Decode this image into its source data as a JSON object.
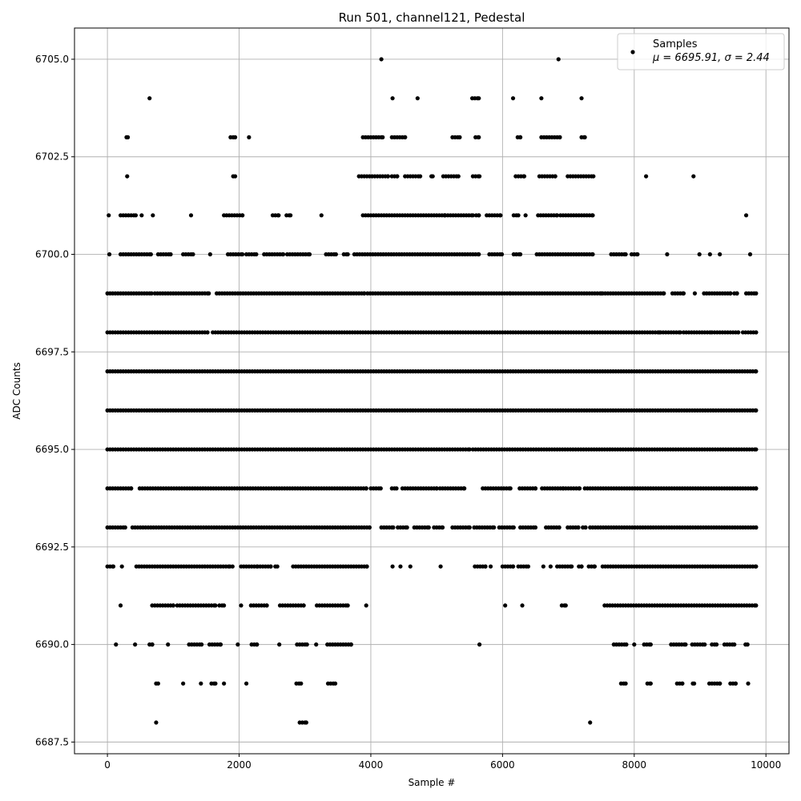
{
  "chart_data": {
    "type": "scatter",
    "title": "Run 501, channel121, Pedestal",
    "xlabel": "Sample #",
    "ylabel": "ADC Counts",
    "xlim": [
      -500,
      10350
    ],
    "ylim": [
      6687.2,
      6705.8
    ],
    "xticks": [
      0,
      2000,
      4000,
      6000,
      8000,
      10000
    ],
    "xtick_labels": [
      "0",
      "2000",
      "4000",
      "6000",
      "8000",
      "10000"
    ],
    "yticks": [
      6687.5,
      6690.0,
      6692.5,
      6695.0,
      6697.5,
      6700.0,
      6702.5,
      6705.0
    ],
    "ytick_labels": [
      "6687.5",
      "6690.0",
      "6692.5",
      "6695.0",
      "6697.5",
      "6700.0",
      "6702.5",
      "6705.0"
    ],
    "grid": true,
    "marker_color": "#000000",
    "legend": {
      "position": "top-right",
      "label": "Samples",
      "stats_line": "μ = 6695.91, σ = 2.44"
    },
    "n_samples": 9850,
    "mean": 6695.91,
    "sigma": 2.44,
    "level_ranges": [
      {
        "y": 6705,
        "ranges": [
          [
            4160,
            4160
          ],
          [
            6850,
            6850
          ]
        ]
      },
      {
        "y": 6704,
        "ranges": [
          [
            640,
            640
          ],
          [
            4330,
            4330
          ],
          [
            4710,
            4710
          ],
          [
            5540,
            5640
          ],
          [
            6160,
            6160
          ],
          [
            6590,
            6590
          ],
          [
            7200,
            7200
          ]
        ]
      },
      {
        "y": 6703,
        "ranges": [
          [
            290,
            310
          ],
          [
            1870,
            1940
          ],
          [
            2150,
            2150
          ],
          [
            3880,
            4180
          ],
          [
            4320,
            4520
          ],
          [
            5240,
            5350
          ],
          [
            5590,
            5640
          ],
          [
            6230,
            6270
          ],
          [
            6590,
            6870
          ],
          [
            7200,
            7250
          ]
        ]
      },
      {
        "y": 6702,
        "ranges": [
          [
            300,
            300
          ],
          [
            1910,
            1940
          ],
          [
            3820,
            4260
          ],
          [
            4320,
            4400
          ],
          [
            4520,
            4750
          ],
          [
            4920,
            4940
          ],
          [
            5100,
            5330
          ],
          [
            5550,
            5650
          ],
          [
            6200,
            6330
          ],
          [
            6560,
            6800
          ],
          [
            6990,
            7380
          ],
          [
            8180,
            8180
          ],
          [
            8900,
            8900
          ]
        ]
      },
      {
        "y": 6701,
        "ranges": [
          [
            20,
            20
          ],
          [
            200,
            430
          ],
          [
            520,
            520
          ],
          [
            690,
            690
          ],
          [
            1270,
            1270
          ],
          [
            1770,
            2050
          ],
          [
            2510,
            2600
          ],
          [
            2720,
            2780
          ],
          [
            3250,
            3250
          ],
          [
            3880,
            5120
          ],
          [
            5130,
            5550
          ],
          [
            5600,
            5640
          ],
          [
            5760,
            5970
          ],
          [
            6170,
            6240
          ],
          [
            6350,
            6350
          ],
          [
            6540,
            6830
          ],
          [
            6880,
            7370
          ],
          [
            9700,
            9700
          ]
        ]
      },
      {
        "y": 6700,
        "ranges": [
          [
            30,
            30
          ],
          [
            200,
            660
          ],
          [
            770,
            960
          ],
          [
            1150,
            1300
          ],
          [
            1560,
            1560
          ],
          [
            1830,
            2050
          ],
          [
            2110,
            2260
          ],
          [
            2380,
            2670
          ],
          [
            2730,
            3070
          ],
          [
            3320,
            3470
          ],
          [
            3590,
            3650
          ],
          [
            3750,
            5640
          ],
          [
            5800,
            5990
          ],
          [
            6170,
            6270
          ],
          [
            6520,
            7370
          ],
          [
            7650,
            7870
          ],
          [
            7960,
            8050
          ],
          [
            8500,
            8500
          ],
          [
            8990,
            8990
          ],
          [
            9150,
            9150
          ],
          [
            9300,
            9300
          ],
          [
            9760,
            9760
          ]
        ]
      },
      {
        "y": 6699,
        "ranges": [
          [
            0,
            670
          ],
          [
            720,
            1540
          ],
          [
            1660,
            3900
          ],
          [
            3950,
            6120
          ],
          [
            6160,
            7500
          ],
          [
            7520,
            8450
          ],
          [
            8580,
            8750
          ],
          [
            8920,
            8920
          ],
          [
            9060,
            9460
          ],
          [
            9520,
            9560
          ],
          [
            9700,
            9850
          ]
        ]
      },
      {
        "y": 6698,
        "ranges": [
          [
            0,
            1520
          ],
          [
            1600,
            8380
          ],
          [
            8400,
            8700
          ],
          [
            8750,
            9180
          ],
          [
            9220,
            9580
          ],
          [
            9650,
            9850
          ]
        ]
      },
      {
        "y": 6697,
        "ranges": [
          [
            0,
            9850
          ]
        ]
      },
      {
        "y": 6696,
        "ranges": [
          [
            0,
            9850
          ]
        ]
      },
      {
        "y": 6695,
        "ranges": [
          [
            0,
            5500
          ],
          [
            5550,
            9850
          ]
        ]
      },
      {
        "y": 6694,
        "ranges": [
          [
            0,
            360
          ],
          [
            490,
            3930
          ],
          [
            4000,
            4150
          ],
          [
            4320,
            4390
          ],
          [
            4480,
            5000
          ],
          [
            5050,
            5420
          ],
          [
            5700,
            6120
          ],
          [
            6260,
            6500
          ],
          [
            6600,
            6920
          ],
          [
            6960,
            7170
          ],
          [
            7250,
            9850
          ]
        ]
      },
      {
        "y": 6693,
        "ranges": [
          [
            0,
            270
          ],
          [
            380,
            3980
          ],
          [
            4160,
            4340
          ],
          [
            4410,
            4550
          ],
          [
            4660,
            4880
          ],
          [
            4960,
            5090
          ],
          [
            5240,
            5500
          ],
          [
            5570,
            5870
          ],
          [
            5950,
            6170
          ],
          [
            6270,
            6500
          ],
          [
            6660,
            6860
          ],
          [
            6990,
            7150
          ],
          [
            7220,
            7260
          ],
          [
            7330,
            9850
          ]
        ]
      },
      {
        "y": 6692,
        "ranges": [
          [
            0,
            90
          ],
          [
            220,
            220
          ],
          [
            440,
            1860
          ],
          [
            1900,
            1900
          ],
          [
            2030,
            2280
          ],
          [
            2320,
            2480
          ],
          [
            2550,
            2580
          ],
          [
            2820,
            3940
          ],
          [
            4330,
            4330
          ],
          [
            4450,
            4450
          ],
          [
            4600,
            4600
          ],
          [
            5060,
            5060
          ],
          [
            5580,
            5740
          ],
          [
            5820,
            5820
          ],
          [
            6000,
            6160
          ],
          [
            6240,
            6390
          ],
          [
            6620,
            6620
          ],
          [
            6730,
            6730
          ],
          [
            6830,
            7050
          ],
          [
            7160,
            7200
          ],
          [
            7310,
            7400
          ],
          [
            7520,
            9850
          ]
        ]
      },
      {
        "y": 6691,
        "ranges": [
          [
            200,
            200
          ],
          [
            680,
            1000
          ],
          [
            1060,
            1640
          ],
          [
            1700,
            1770
          ],
          [
            2030,
            2030
          ],
          [
            2180,
            2420
          ],
          [
            2620,
            2980
          ],
          [
            3180,
            3650
          ],
          [
            3930,
            3930
          ],
          [
            6040,
            6040
          ],
          [
            6300,
            6300
          ],
          [
            6900,
            6960
          ],
          [
            7550,
            9850
          ]
        ]
      },
      {
        "y": 6690,
        "ranges": [
          [
            130,
            130
          ],
          [
            420,
            420
          ],
          [
            640,
            680
          ],
          [
            920,
            920
          ],
          [
            1240,
            1430
          ],
          [
            1550,
            1720
          ],
          [
            1980,
            1980
          ],
          [
            2190,
            2270
          ],
          [
            2610,
            2610
          ],
          [
            2880,
            3030
          ],
          [
            3170,
            3170
          ],
          [
            3340,
            3700
          ],
          [
            5650,
            5650
          ],
          [
            7690,
            7880
          ],
          [
            8000,
            8000
          ],
          [
            8150,
            8250
          ],
          [
            8560,
            8780
          ],
          [
            8880,
            9070
          ],
          [
            9180,
            9250
          ],
          [
            9370,
            9520
          ],
          [
            9690,
            9720
          ]
        ]
      },
      {
        "y": 6689,
        "ranges": [
          [
            740,
            770
          ],
          [
            1150,
            1150
          ],
          [
            1420,
            1420
          ],
          [
            1580,
            1640
          ],
          [
            1770,
            1770
          ],
          [
            2110,
            2110
          ],
          [
            2870,
            2940
          ],
          [
            3350,
            3460
          ],
          [
            7800,
            7870
          ],
          [
            8200,
            8250
          ],
          [
            8650,
            8730
          ],
          [
            8890,
            8910
          ],
          [
            9140,
            9300
          ],
          [
            9460,
            9540
          ],
          [
            9730,
            9730
          ]
        ]
      },
      {
        "y": 6688,
        "ranges": [
          [
            740,
            740
          ],
          [
            2920,
            3020
          ],
          [
            7330,
            7330
          ]
        ]
      }
    ]
  }
}
